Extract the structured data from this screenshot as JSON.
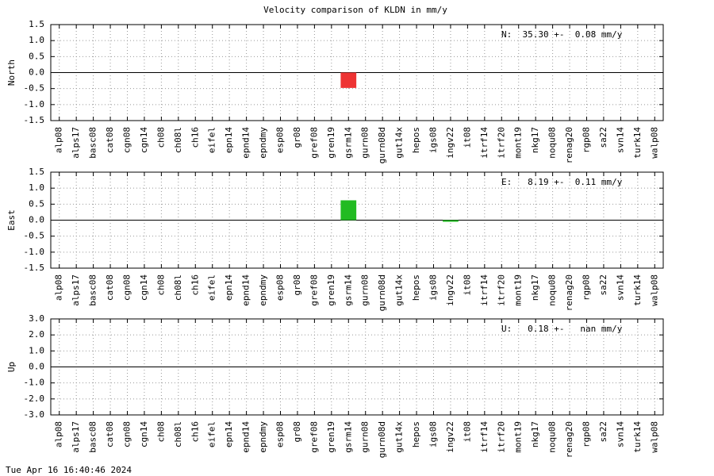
{
  "title": "Velocity comparison of KLDN in mm/y",
  "footer": "Tue Apr 16 16:40:46 2024",
  "chart_data": [
    {
      "type": "bar",
      "ylabel": "North",
      "annotation": "N:  35.30 +-  0.08 mm/y",
      "categories": [
        "alp08",
        "alps17",
        "basc08",
        "cat08",
        "cgn08",
        "cgn14",
        "ch08",
        "ch08l",
        "ch16",
        "eifel",
        "epn14",
        "epnd14",
        "epndmy",
        "esp08",
        "gr08",
        "gref08",
        "gren19",
        "gsrm14",
        "gurn08",
        "gurn08d",
        "gut14x",
        "hepos",
        "igs08",
        "ingv22",
        "it08",
        "itrf14",
        "itrf20",
        "mont19",
        "nkg17",
        "noqu08",
        "renag20",
        "rgp08",
        "sa22",
        "svn14",
        "turk14",
        "walp08"
      ],
      "values": [
        null,
        null,
        null,
        null,
        null,
        null,
        null,
        null,
        null,
        null,
        null,
        null,
        null,
        null,
        null,
        null,
        null,
        -0.48,
        null,
        null,
        null,
        null,
        null,
        null,
        null,
        null,
        null,
        null,
        null,
        null,
        null,
        null,
        null,
        null,
        null,
        null
      ],
      "color": "#ee3333",
      "ylim": [
        -1.5,
        1.5
      ],
      "yticks": [
        {
          "value": -1.5,
          "label": "-1.5"
        },
        {
          "value": -1,
          "label": "-1.0"
        },
        {
          "value": -0.5,
          "label": "-0.5"
        },
        {
          "value": 0,
          "label": "0.0"
        },
        {
          "value": 0.5,
          "label": "0.5"
        },
        {
          "value": 1,
          "label": "1.0"
        },
        {
          "value": 1.5,
          "label": "1.5"
        }
      ],
      "grid": true
    },
    {
      "type": "bar",
      "ylabel": "East",
      "annotation": "E:   8.19 +-  0.11 mm/y",
      "categories": [
        "alp08",
        "alps17",
        "basc08",
        "cat08",
        "cgn08",
        "cgn14",
        "ch08",
        "ch08l",
        "ch16",
        "eifel",
        "epn14",
        "epnd14",
        "epndmy",
        "esp08",
        "gr08",
        "gref08",
        "gren19",
        "gsrm14",
        "gurn08",
        "gurn08d",
        "gut14x",
        "hepos",
        "igs08",
        "ingv22",
        "it08",
        "itrf14",
        "itrf20",
        "mont19",
        "nkg17",
        "noqu08",
        "renag20",
        "rgp08",
        "sa22",
        "svn14",
        "turk14",
        "walp08"
      ],
      "values": [
        null,
        null,
        null,
        null,
        null,
        null,
        null,
        null,
        null,
        null,
        null,
        null,
        null,
        null,
        null,
        null,
        null,
        0.62,
        null,
        null,
        null,
        null,
        null,
        -0.05,
        null,
        null,
        null,
        null,
        null,
        null,
        null,
        null,
        null,
        null,
        null,
        null
      ],
      "color": "#22bb22",
      "ylim": [
        -1.5,
        1.5
      ],
      "yticks": [
        {
          "value": -1.5,
          "label": "-1.5"
        },
        {
          "value": -1,
          "label": "-1.0"
        },
        {
          "value": -0.5,
          "label": "-0.5"
        },
        {
          "value": 0,
          "label": "0.0"
        },
        {
          "value": 0.5,
          "label": "0.5"
        },
        {
          "value": 1,
          "label": "1.0"
        },
        {
          "value": 1.5,
          "label": "1.5"
        }
      ],
      "grid": true
    },
    {
      "type": "bar",
      "ylabel": "Up",
      "annotation": "U:   0.18 +-   nan mm/y",
      "categories": [
        "alp08",
        "alps17",
        "basc08",
        "cat08",
        "cgn08",
        "cgn14",
        "ch08",
        "ch08l",
        "ch16",
        "eifel",
        "epn14",
        "epnd14",
        "epndmy",
        "esp08",
        "gr08",
        "gref08",
        "gren19",
        "gsrm14",
        "gurn08",
        "gurn08d",
        "gut14x",
        "hepos",
        "igs08",
        "ingv22",
        "it08",
        "itrf14",
        "itrf20",
        "mont19",
        "nkg17",
        "noqu08",
        "renag20",
        "rgp08",
        "sa22",
        "svn14",
        "turk14",
        "walp08"
      ],
      "values": [
        null,
        null,
        null,
        null,
        null,
        null,
        null,
        null,
        null,
        null,
        null,
        null,
        null,
        null,
        null,
        null,
        null,
        null,
        null,
        null,
        null,
        null,
        null,
        null,
        null,
        null,
        null,
        null,
        null,
        null,
        null,
        null,
        null,
        null,
        null,
        null
      ],
      "color": "#3333ee",
      "ylim": [
        -3,
        3
      ],
      "yticks": [
        {
          "value": -3,
          "label": "-3.0"
        },
        {
          "value": -2,
          "label": "-2.0"
        },
        {
          "value": -1,
          "label": "-1.0"
        },
        {
          "value": 0,
          "label": "0.0"
        },
        {
          "value": 1,
          "label": "1.0"
        },
        {
          "value": 2,
          "label": "2.0"
        },
        {
          "value": 3,
          "label": "3.0"
        }
      ],
      "grid": true
    }
  ]
}
